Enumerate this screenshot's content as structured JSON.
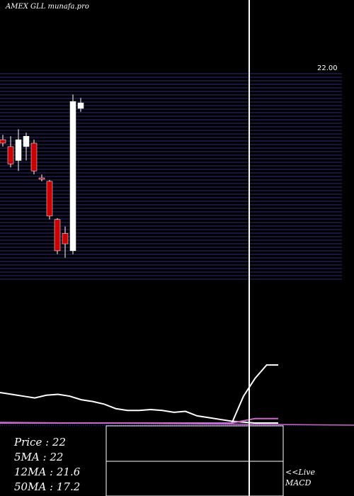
{
  "header": {
    "title": "AMEX GLL munafa.pro"
  },
  "stats": {
    "price": "Price   : 22",
    "ma5": "5MA : 22",
    "ma12": "12MA : 21.6",
    "ma50": "50MA : 17.2"
  },
  "macd_label": {
    "line1": "<<Live",
    "line2": "MACD"
  },
  "colors": {
    "background": "#000000",
    "grid": "#2a2a7a",
    "bull": "#ffffff",
    "bear": "#cc0000",
    "ma": "#ffffff",
    "macd_signal": "#cc66cc",
    "macd_dots": "#3333ff"
  },
  "chart_data": {
    "type": "candlestick",
    "title": "",
    "price_range": [
      19.5,
      22.5
    ],
    "top_tick_label": "22.00",
    "candles": [
      {
        "o": 21.55,
        "h": 21.62,
        "l": 21.45,
        "c": 21.5
      },
      {
        "o": 21.45,
        "h": 21.6,
        "l": 21.15,
        "c": 21.2
      },
      {
        "o": 21.25,
        "h": 21.7,
        "l": 21.1,
        "c": 21.55
      },
      {
        "o": 21.45,
        "h": 21.65,
        "l": 21.25,
        "c": 21.6
      },
      {
        "o": 21.5,
        "h": 21.55,
        "l": 21.05,
        "c": 21.1
      },
      {
        "o": 21.0,
        "h": 21.05,
        "l": 20.95,
        "c": 20.98
      },
      {
        "o": 20.95,
        "h": 20.97,
        "l": 20.4,
        "c": 20.45
      },
      {
        "o": 20.4,
        "h": 20.42,
        "l": 19.9,
        "c": 19.95
      },
      {
        "o": 20.2,
        "h": 20.3,
        "l": 19.85,
        "c": 20.05
      },
      {
        "o": 19.95,
        "h": 22.2,
        "l": 19.9,
        "c": 22.1
      },
      {
        "o": 22.0,
        "h": 22.15,
        "l": 21.95,
        "c": 22.08
      }
    ],
    "ma_line": [
      19.0,
      18.9,
      18.8,
      18.7,
      18.85,
      18.9,
      18.8,
      18.6,
      18.5,
      18.35,
      18.1,
      18.0,
      18.0,
      18.05,
      18.0,
      17.9,
      17.95,
      17.7,
      17.6,
      17.5,
      17.4,
      17.35,
      17.3,
      17.3,
      17.3
    ],
    "macd_line": [
      0,
      0,
      0,
      0,
      0,
      0,
      0,
      0,
      0,
      0,
      0,
      0,
      0,
      0,
      0,
      0,
      0,
      0,
      0,
      0,
      0,
      0.6,
      1.0,
      1.3,
      1.3
    ],
    "signal_line": [
      0,
      0,
      0,
      0,
      0,
      0,
      0,
      0,
      0,
      0,
      0,
      0,
      0,
      0,
      0,
      0,
      0,
      0,
      0,
      0,
      0,
      0.05,
      0.1,
      0.1,
      0.1
    ]
  }
}
